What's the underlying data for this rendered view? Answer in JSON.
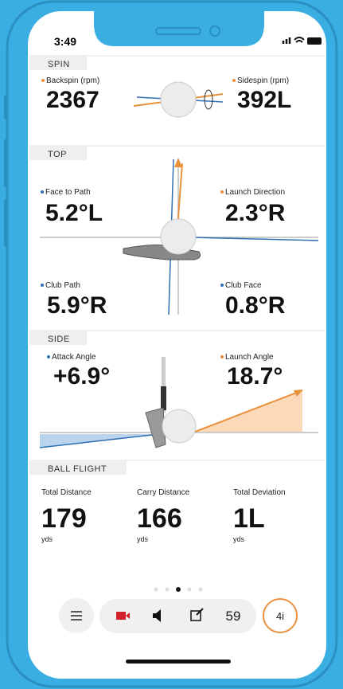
{
  "status": {
    "time": "3:49"
  },
  "spin": {
    "header": "SPIN",
    "metrics": [
      {
        "label": "Backspin (rpm)",
        "value": "2367"
      },
      {
        "label": "Sidespin (rpm)",
        "value": "392L"
      }
    ]
  },
  "top": {
    "header": "TOP",
    "metrics": [
      {
        "label": "Face to Path",
        "value": "5.2°L"
      },
      {
        "label": "Launch Direction",
        "value": "2.3°R"
      },
      {
        "label": "Club Path",
        "value": "5.9°R"
      },
      {
        "label": "Club Face",
        "value": "0.8°R"
      }
    ]
  },
  "side": {
    "header": "SIDE",
    "metrics": [
      {
        "label": "Attack Angle",
        "value": "+6.9°"
      },
      {
        "label": "Launch Angle",
        "value": "18.7°"
      }
    ]
  },
  "ball_flight": {
    "header": "BALL FLIGHT",
    "metrics": [
      {
        "label": "Total Distance",
        "value": "179",
        "unit": "yds"
      },
      {
        "label": "Carry Distance",
        "value": "166",
        "unit": "yds"
      },
      {
        "label": "Total Deviation",
        "value": "1L",
        "unit": "yds"
      }
    ]
  },
  "toolbar": {
    "count": "59",
    "club": "4i"
  }
}
